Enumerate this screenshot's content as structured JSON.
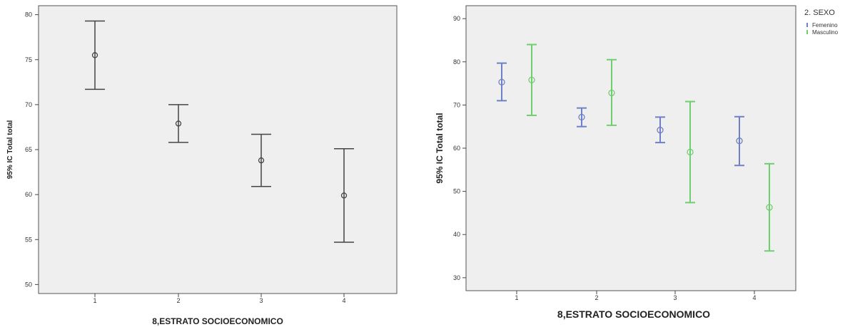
{
  "chart_data": [
    {
      "type": "errorbar",
      "xlabel": "8,ESTRATO SOCIOECONOMICO",
      "ylabel": "95% IC Total total",
      "categories": [
        "1",
        "2",
        "3",
        "4"
      ],
      "ylim": [
        49,
        81
      ],
      "yticks": [
        50,
        55,
        60,
        65,
        70,
        75,
        80
      ],
      "grid": false,
      "series": [
        {
          "color": "#444444",
          "points": [
            {
              "x": "1",
              "mean": 75.5,
              "low": 71.7,
              "high": 79.3
            },
            {
              "x": "2",
              "mean": 67.9,
              "low": 65.8,
              "high": 70.0
            },
            {
              "x": "3",
              "mean": 63.8,
              "low": 60.9,
              "high": 66.7
            },
            {
              "x": "4",
              "mean": 59.9,
              "low": 54.7,
              "high": 65.1
            }
          ]
        }
      ]
    },
    {
      "type": "errorbar",
      "xlabel": "8,ESTRATO SOCIOECONOMICO",
      "ylabel": "95% IC Total total",
      "categories": [
        "1",
        "2",
        "3",
        "4"
      ],
      "ylim": [
        27,
        93
      ],
      "yticks": [
        30,
        40,
        50,
        60,
        70,
        80,
        90
      ],
      "grid": false,
      "legend": {
        "title": "2. SEXO",
        "position": "top-right-outside",
        "entries": [
          "Femenino",
          "Masculino"
        ]
      },
      "series": [
        {
          "name": "Femenino",
          "color": "#6f7fc8",
          "points": [
            {
              "x": "1",
              "mean": 75.3,
              "low": 71.0,
              "high": 79.7
            },
            {
              "x": "2",
              "mean": 67.2,
              "low": 65.0,
              "high": 69.3
            },
            {
              "x": "3",
              "mean": 64.2,
              "low": 61.3,
              "high": 67.2
            },
            {
              "x": "4",
              "mean": 61.7,
              "low": 56.0,
              "high": 67.3
            }
          ]
        },
        {
          "name": "Masculino",
          "color": "#6fcf6f",
          "points": [
            {
              "x": "1",
              "mean": 75.8,
              "low": 67.6,
              "high": 84.0
            },
            {
              "x": "2",
              "mean": 72.8,
              "low": 65.3,
              "high": 80.5
            },
            {
              "x": "3",
              "mean": 59.1,
              "low": 47.4,
              "high": 70.8
            },
            {
              "x": "4",
              "mean": 46.3,
              "low": 36.2,
              "high": 56.4
            }
          ]
        }
      ]
    }
  ]
}
